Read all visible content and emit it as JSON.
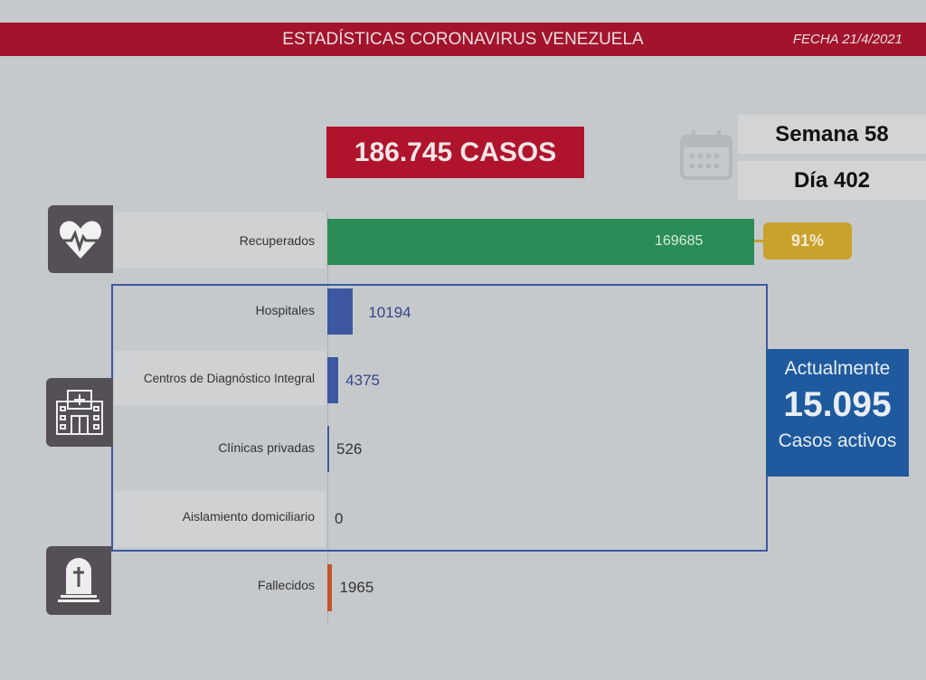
{
  "header": {
    "title": "ESTADÍSTICAS CORONAVIRUS VENEZUELA",
    "date": "FECHA 21/4/2021"
  },
  "total": "186.745 CASOS",
  "week": "Semana 58",
  "day": "Día 402",
  "active": {
    "label_top": "Actualmente",
    "value": "15.095",
    "label_bottom": "Casos activos"
  },
  "recovered_pct": "91%",
  "colors": {
    "header": "#a3132c",
    "recovered": "#2a8d57",
    "active": "#3c58a2",
    "deaths": "#c4552a",
    "pct": "#c9a22c"
  },
  "chart_data": {
    "type": "bar",
    "orientation": "horizontal",
    "categories": [
      "Recuperados",
      "Hospitales",
      "Centros de Diagnóstico Integral",
      "Clínicas privadas",
      "Aislamiento domiciliario",
      "Fallecidos"
    ],
    "values": [
      169685,
      10194,
      4375,
      526,
      0,
      1965
    ],
    "labels": [
      "169685",
      "10194",
      "4375",
      "526",
      "0",
      "1965"
    ],
    "icons": [
      "heart-pulse-icon",
      "hospital-icon",
      "tombstone-icon"
    ]
  }
}
